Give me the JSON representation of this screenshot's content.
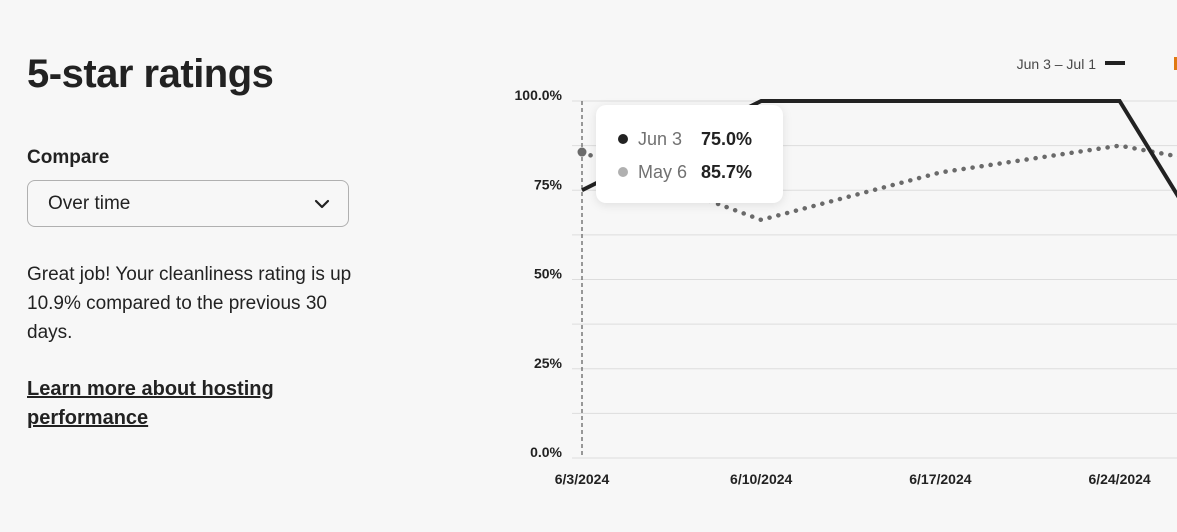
{
  "title": "5-star ratings",
  "compare": {
    "label": "Compare",
    "selected": "Over time"
  },
  "message": "Great job! Your cleanliness rating is up 10.9% compared to the previous 30 days.",
  "learn_more_link": "Learn more about hosting performance",
  "tooltip": {
    "rows": [
      {
        "date": "Jun 3",
        "value": "75.0%"
      },
      {
        "date": "May 6",
        "value": "85.7%"
      }
    ]
  },
  "colors": {
    "current": "#222222",
    "previous": "#6a6a6a",
    "previous_dot": "#b0b0b0",
    "grid": "#dddddd",
    "accent_orange": "#e07912"
  },
  "chart_data": {
    "type": "line",
    "xlabel": "",
    "ylabel": "",
    "ylim": [
      0,
      100
    ],
    "y_ticks": [
      {
        "value": 0,
        "label": "0.0%"
      },
      {
        "value": 25,
        "label": "25%"
      },
      {
        "value": 50,
        "label": "50%"
      },
      {
        "value": 75,
        "label": "75%"
      },
      {
        "value": 100,
        "label": "100.0%"
      }
    ],
    "x_ticks": [
      "6/3/2024",
      "6/10/2024",
      "6/17/2024",
      "6/24/2024"
    ],
    "x_tick_dates": [
      "2024-06-03",
      "2024-06-10",
      "2024-06-17",
      "2024-06-24"
    ],
    "x_range": [
      "2024-06-03",
      "2024-06-27"
    ],
    "grid": true,
    "legend_position": "top-right",
    "hover_date": "2024-06-03",
    "series": [
      {
        "name": "Jun 3 – Jul 1",
        "style": "solid",
        "points": [
          {
            "x": "2024-06-03",
            "y": 75.0
          },
          {
            "x": "2024-06-10",
            "y": 100.0
          },
          {
            "x": "2024-06-24",
            "y": 100.0
          },
          {
            "x": "2024-06-27",
            "y": 65.0
          }
        ]
      },
      {
        "name": "",
        "style": "dotted",
        "points": [
          {
            "x": "2024-06-03",
            "y": 85.7
          },
          {
            "x": "2024-06-08",
            "y": 72.0
          },
          {
            "x": "2024-06-10",
            "y": 66.7
          },
          {
            "x": "2024-06-17",
            "y": 80.0
          },
          {
            "x": "2024-06-24",
            "y": 87.5
          },
          {
            "x": "2024-06-27",
            "y": 83.5
          }
        ]
      }
    ]
  }
}
